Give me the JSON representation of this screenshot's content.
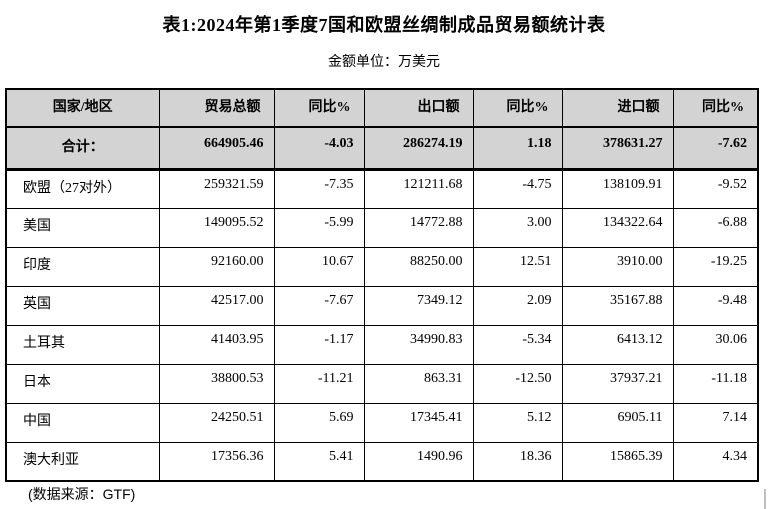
{
  "page": {
    "title": "表1:2024年第1季度7国和欧盟丝绸制成品贸易额统计表",
    "unit_note": "金额单位：万美元",
    "source_note": "(数据来源：GTF)"
  },
  "table": {
    "columns": [
      "国家/地区",
      "贸易总额",
      "同比%",
      "出口额",
      "同比%",
      "进口额",
      "同比%"
    ],
    "total_row": {
      "label": "合计：",
      "values": [
        "664905.46",
        "-4.03",
        "286274.19",
        "1.18",
        "378631.27",
        "-7.62"
      ]
    },
    "rows": [
      {
        "label": "欧盟（27对外）",
        "values": [
          "259321.59",
          "-7.35",
          "121211.68",
          "-4.75",
          "138109.91",
          "-9.52"
        ]
      },
      {
        "label": "美国",
        "values": [
          "149095.52",
          "-5.99",
          "14772.88",
          "3.00",
          "134322.64",
          "-6.88"
        ]
      },
      {
        "label": "印度",
        "values": [
          "92160.00",
          "10.67",
          "88250.00",
          "12.51",
          "3910.00",
          "-19.25"
        ]
      },
      {
        "label": "英国",
        "values": [
          "42517.00",
          "-7.67",
          "7349.12",
          "2.09",
          "35167.88",
          "-9.48"
        ]
      },
      {
        "label": "土耳其",
        "values": [
          "41403.95",
          "-1.17",
          "34990.83",
          "-5.34",
          "6413.12",
          "30.06"
        ]
      },
      {
        "label": "日本",
        "values": [
          "38800.53",
          "-11.21",
          "863.31",
          "-12.50",
          "37937.21",
          "-11.18"
        ]
      },
      {
        "label": "中国",
        "values": [
          "24250.51",
          "5.69",
          "17345.41",
          "5.12",
          "6905.11",
          "7.14"
        ]
      },
      {
        "label": "澳大利亚",
        "values": [
          "17356.36",
          "5.41",
          "1490.96",
          "18.36",
          "15865.39",
          "4.34"
        ]
      }
    ]
  },
  "colors": {
    "header_bg": "#d3d3d3",
    "border": "#000000",
    "text": "#000000"
  }
}
